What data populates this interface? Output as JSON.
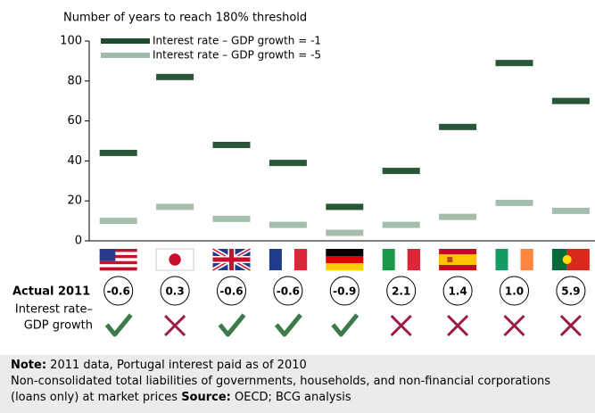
{
  "chart_data": {
    "type": "bar",
    "ylabel": "Number of years to reach 180% threshold",
    "categories": [
      null,
      null,
      null,
      null,
      null,
      null,
      null,
      null,
      null
    ],
    "series": [
      {
        "name": "Interest rate – GDP growth = -1",
        "color": "#1d4d2c",
        "values": [
          44,
          82,
          48,
          39,
          17,
          35,
          57,
          89,
          70
        ]
      },
      {
        "name": "Interest rate – GDP growth = -5",
        "color": "#9fbaa6",
        "values": [
          10,
          17,
          11,
          8,
          4,
          8,
          12,
          19,
          15
        ]
      }
    ],
    "ylim": [
      0,
      100
    ],
    "yticks": [
      0,
      20,
      40,
      60,
      80,
      100
    ],
    "legend": "upper left"
  },
  "actual_2011": {
    "title": "Actual 2011",
    "label": [
      "Interest rate–",
      "GDP growth"
    ],
    "values": [
      -0.6,
      0.3,
      -0.6,
      -0.6,
      -0.9,
      2.1,
      1.4,
      1.0,
      5.9
    ],
    "value_labels": [
      "-0.6",
      "0.3",
      "-0.6",
      "-0.6",
      "-0.9",
      "2.1",
      "1.4",
      "1.0",
      "5.9"
    ]
  },
  "note": {
    "label": "Note:",
    "text": " 2011 data, Portugal interest paid as of 2010",
    "line2": "Non-consolidated  total liabilities of governments, households, and non-financial corporations",
    "line3": "(loans only) at market prices ",
    "source_label": "Source:",
    "source": " OECD; BCG analysis"
  }
}
